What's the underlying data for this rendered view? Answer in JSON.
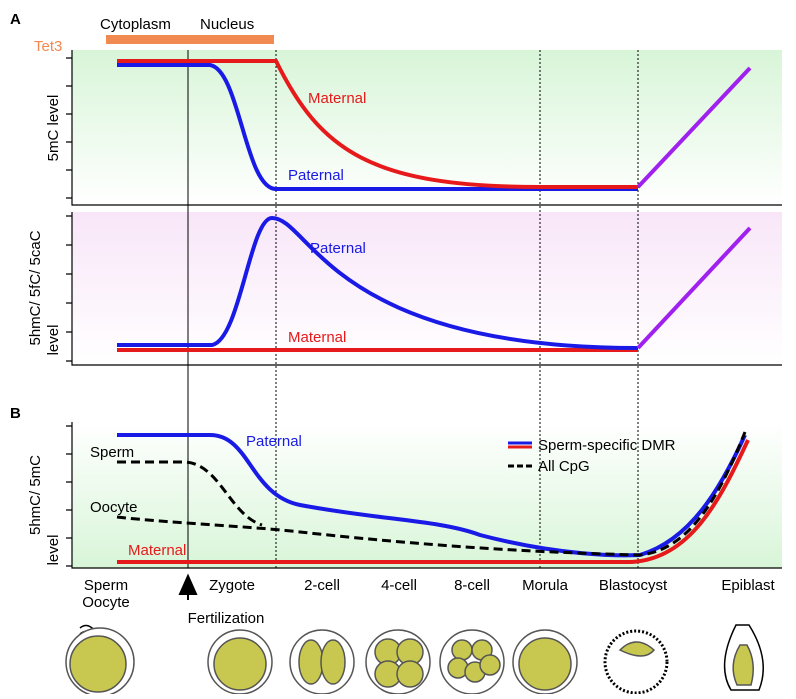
{
  "panel_a": {
    "label": "A",
    "tet3": "Tet3",
    "phases": [
      "Cytoplasm",
      "Nucleus"
    ],
    "top": {
      "ylabel": "5mC level",
      "maternal": "Maternal",
      "paternal": "Paternal"
    },
    "bottom": {
      "ylabel": [
        "5hmC/ 5fC/ 5caC",
        "level"
      ],
      "maternal": "Maternal",
      "paternal": "Paternal"
    }
  },
  "panel_b": {
    "label": "B",
    "ylabel": [
      "5hmC/ 5mC",
      "level"
    ],
    "paternal": "Paternal",
    "maternal": "Maternal",
    "sperm": "Sperm",
    "oocyte": "Oocyte",
    "legend": [
      "Sperm-specific DMR",
      "All CpG"
    ]
  },
  "stages": [
    "Sperm",
    "Oocyte",
    "Fertilization",
    "Zygote",
    "2-cell",
    "4-cell",
    "8-cell",
    "Morula",
    "Blastocyst",
    "Epiblast"
  ]
}
